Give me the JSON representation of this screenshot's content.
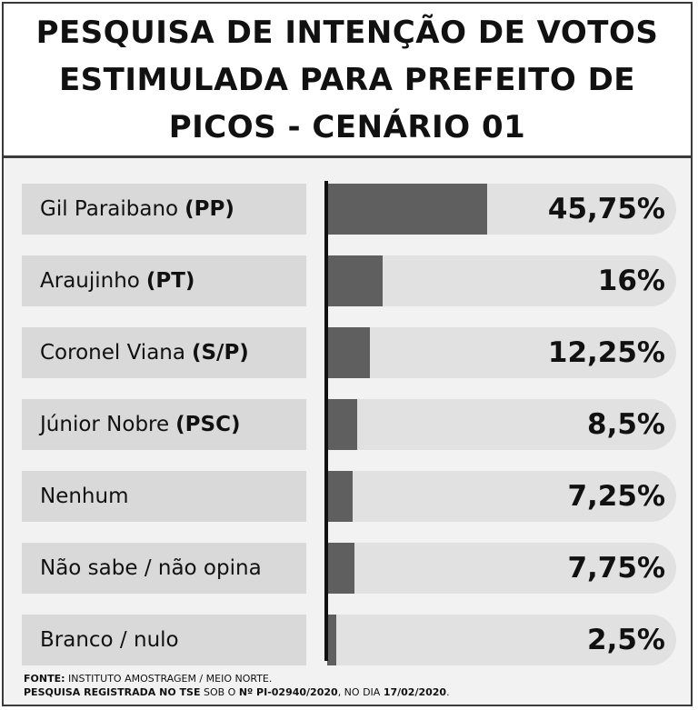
{
  "title": "PESQUISA DE INTENÇÃO DE VOTOS ESTIMULADA PARA PREFEITO DE PICOS - CENÁRIO 01",
  "chart_data": {
    "type": "bar",
    "orientation": "horizontal",
    "title": "PESQUISA DE INTENÇÃO DE VOTOS ESTIMULADA PARA PREFEITO DE PICOS - CENÁRIO 01",
    "categories": [
      {
        "name": "Gil Paraibano",
        "party": "(PP)"
      },
      {
        "name": "Araujinho",
        "party": "(PT)"
      },
      {
        "name": "Coronel Viana",
        "party": "(S/P)"
      },
      {
        "name": "Júnior Nobre",
        "party": "(PSC)"
      },
      {
        "name": "Nenhum",
        "party": ""
      },
      {
        "name": "Não sabe / não opina",
        "party": ""
      },
      {
        "name": "Branco / nulo",
        "party": ""
      }
    ],
    "values": [
      45.75,
      16,
      12.25,
      8.5,
      7.25,
      7.75,
      2.5
    ],
    "value_labels": [
      "45,75%",
      "16%",
      "12,25%",
      "8,5%",
      "7,25%",
      "7,75%",
      "2,5%"
    ],
    "xlim": [
      0,
      100
    ],
    "bar_color": "#5f5f5f",
    "track_color": "#e1e1e1",
    "label_bg_color": "#d9d9d9"
  },
  "footer": {
    "source_label": "FONTE:",
    "source_text": "INSTITUTO AMOSTRAGEM / MEIO NORTE.",
    "registration_label": "PESQUISA REGISTRADA NO TSE",
    "registration_mid": "SOB O",
    "registration_number": "Nº PI-02940/2020",
    "registration_date_prefix": ", NO DIA",
    "registration_date": "17/02/2020",
    "registration_end": "."
  }
}
